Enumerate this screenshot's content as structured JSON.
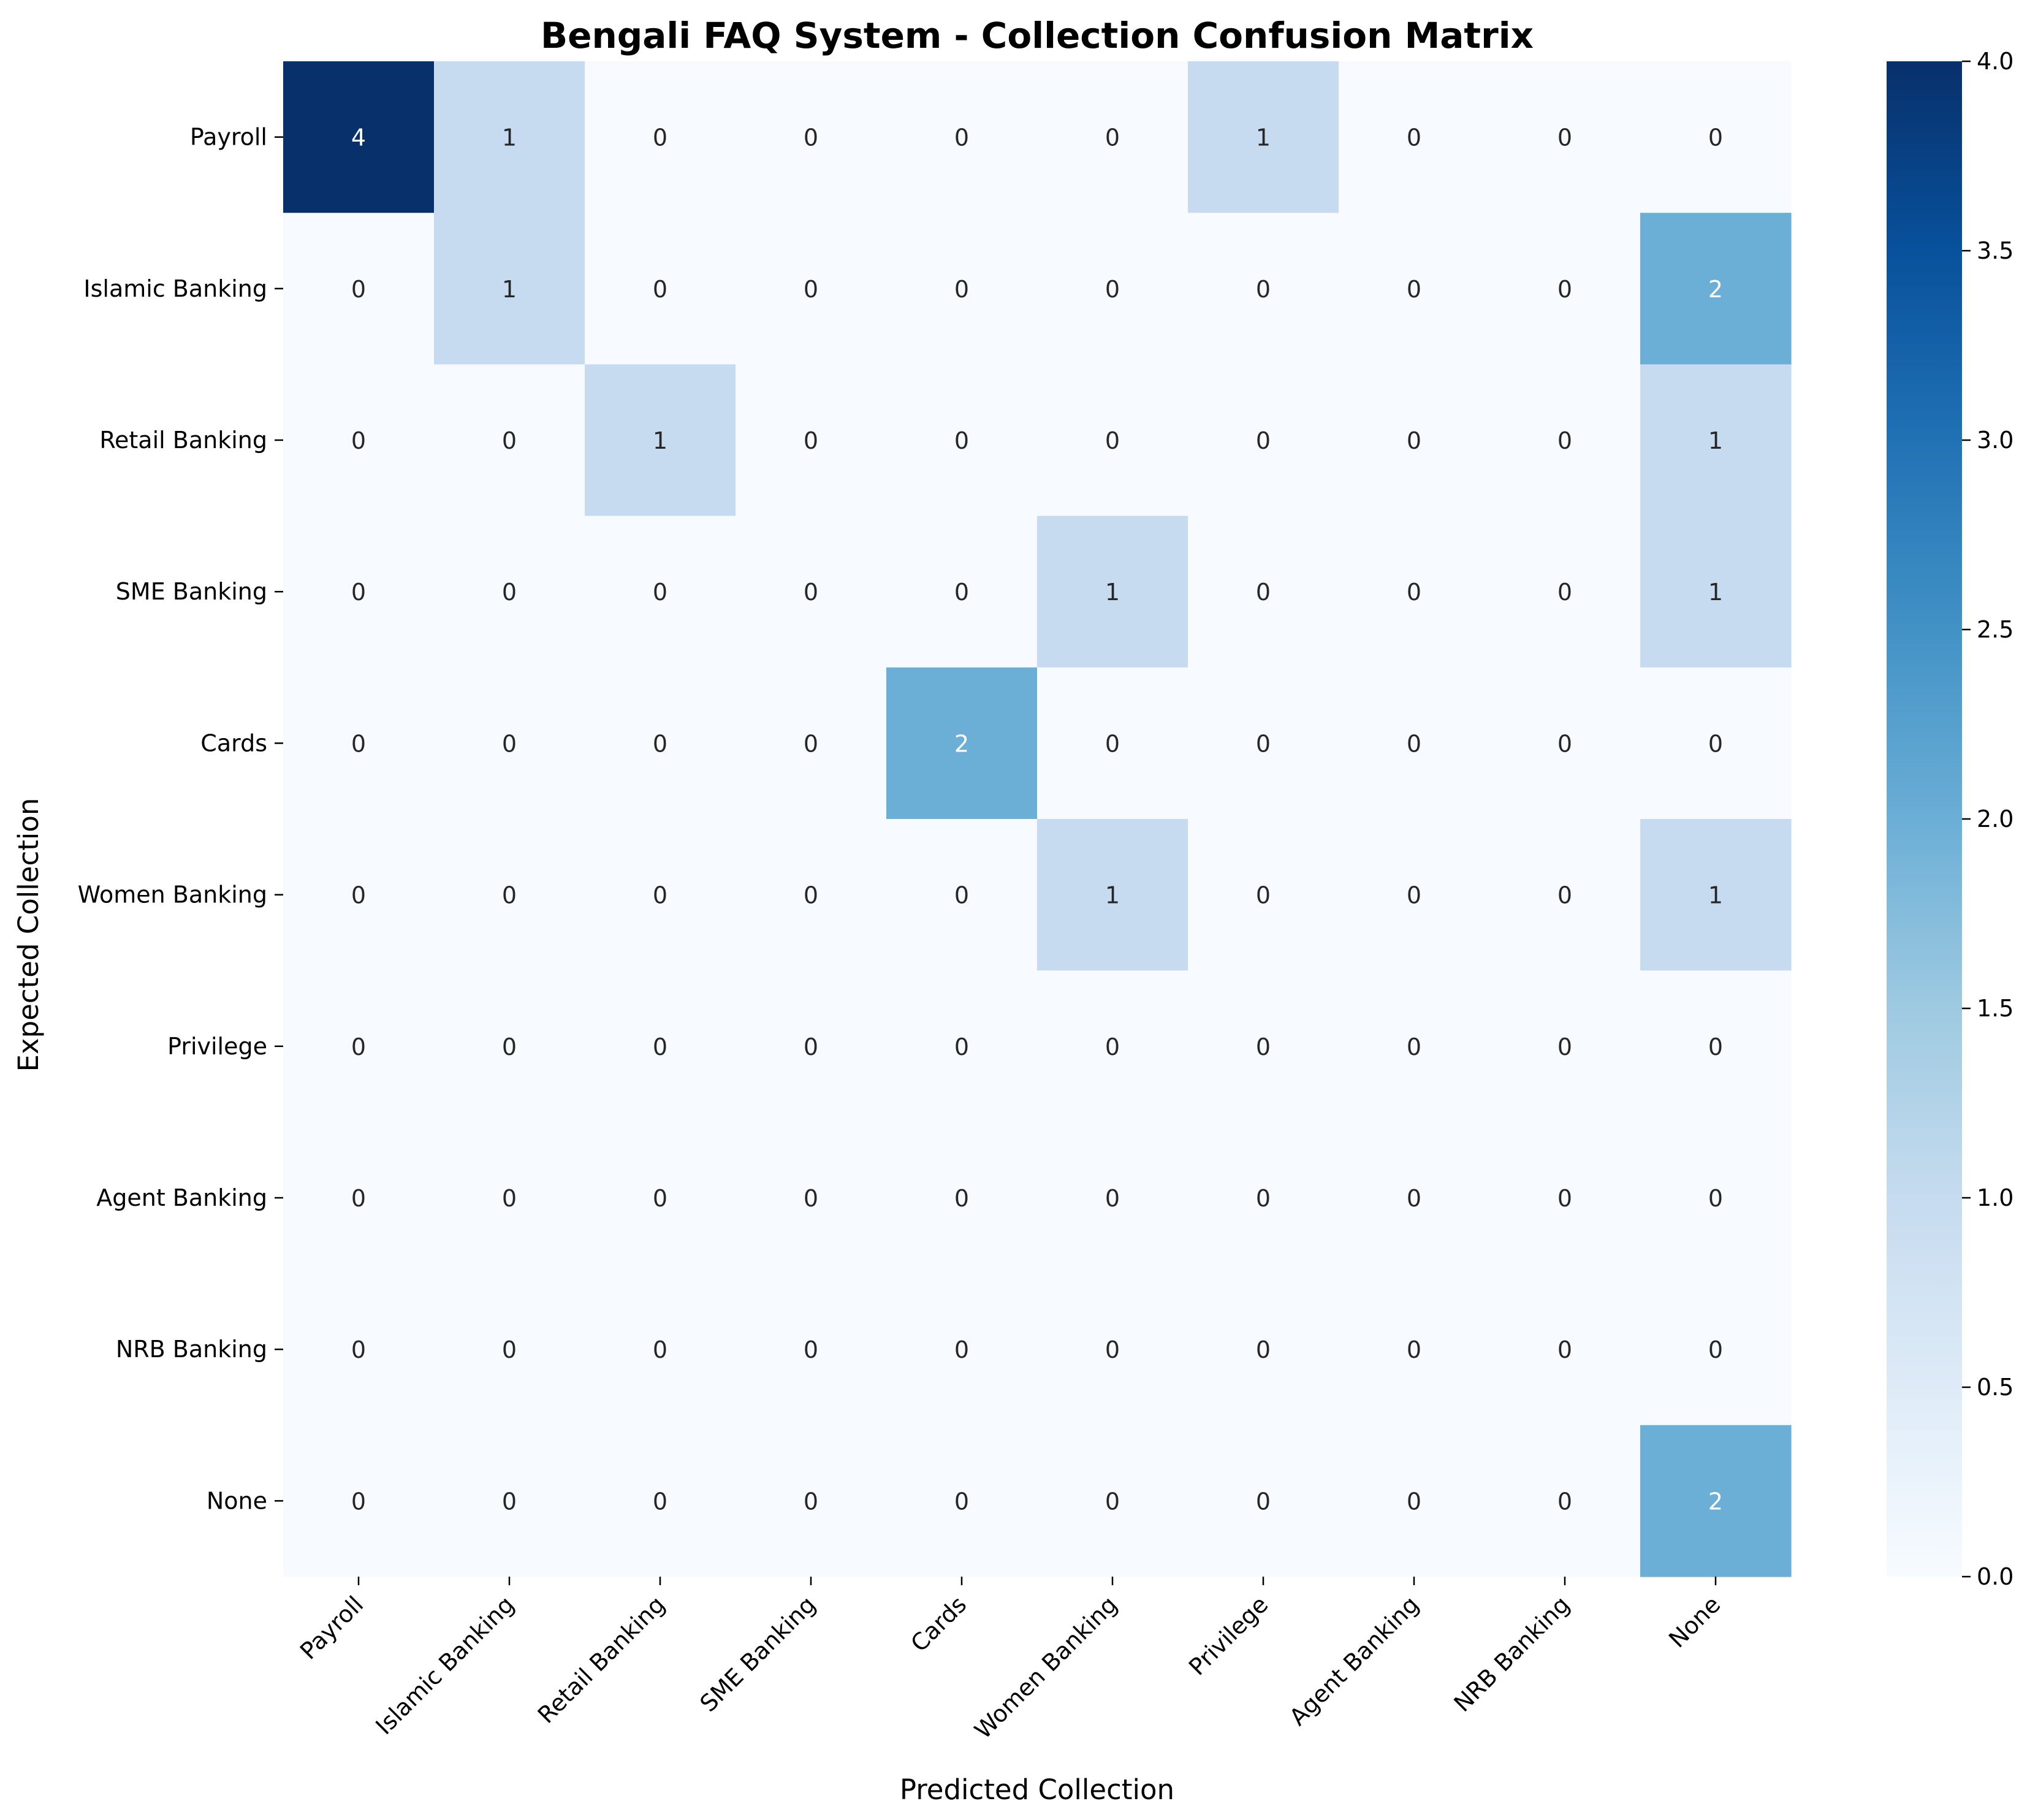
{
  "chart_data": {
    "type": "heatmap",
    "title": "Bengali FAQ System - Collection Confusion Matrix",
    "xlabel": "Predicted Collection",
    "ylabel": "Expected Collection",
    "x_categories": [
      "Payroll",
      "Islamic Banking",
      "Retail Banking",
      "SME Banking",
      "Cards",
      "Women Banking",
      "Privilege",
      "Agent Banking",
      "NRB Banking",
      "None"
    ],
    "y_categories": [
      "Payroll",
      "Islamic Banking",
      "Retail Banking",
      "SME Banking",
      "Cards",
      "Women Banking",
      "Privilege",
      "Agent Banking",
      "NRB Banking",
      "None"
    ],
    "matrix": [
      [
        4,
        1,
        0,
        0,
        0,
        0,
        1,
        0,
        0,
        0
      ],
      [
        0,
        1,
        0,
        0,
        0,
        0,
        0,
        0,
        0,
        2
      ],
      [
        0,
        0,
        1,
        0,
        0,
        0,
        0,
        0,
        0,
        1
      ],
      [
        0,
        0,
        0,
        0,
        0,
        1,
        0,
        0,
        0,
        1
      ],
      [
        0,
        0,
        0,
        0,
        2,
        0,
        0,
        0,
        0,
        0
      ],
      [
        0,
        0,
        0,
        0,
        0,
        1,
        0,
        0,
        0,
        1
      ],
      [
        0,
        0,
        0,
        0,
        0,
        0,
        0,
        0,
        0,
        0
      ],
      [
        0,
        0,
        0,
        0,
        0,
        0,
        0,
        0,
        0,
        0
      ],
      [
        0,
        0,
        0,
        0,
        0,
        0,
        0,
        0,
        0,
        0
      ],
      [
        0,
        0,
        0,
        0,
        0,
        0,
        0,
        0,
        0,
        2
      ]
    ],
    "colormap": "Blues",
    "colorbar": {
      "range": [
        0.0,
        4.0
      ],
      "ticks": [
        "0.0",
        "0.5",
        "1.0",
        "1.5",
        "2.0",
        "2.5",
        "3.0",
        "3.5",
        "4.0"
      ]
    },
    "grid": false
  }
}
